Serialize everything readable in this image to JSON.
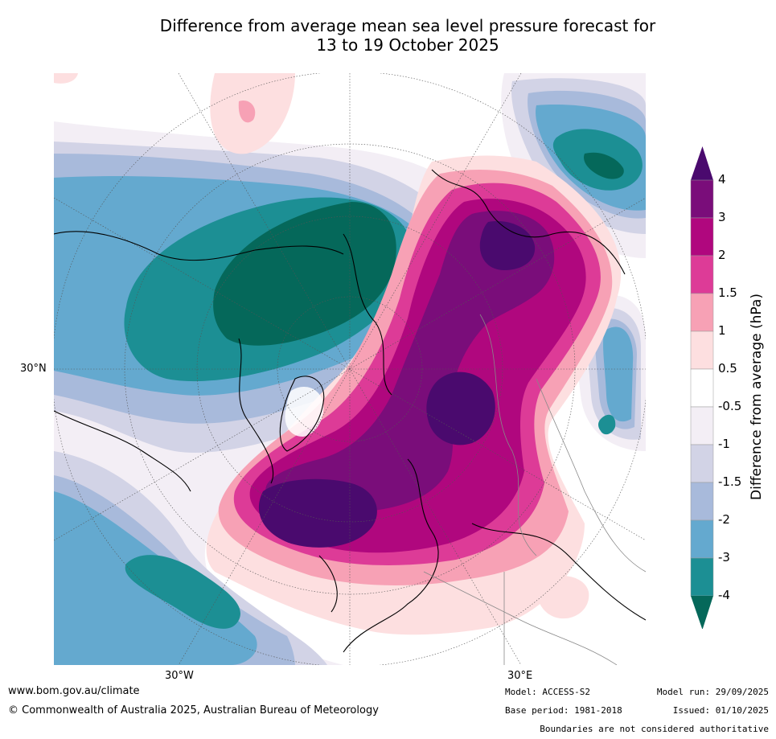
{
  "title": {
    "line1": "Difference from average mean sea level pressure forecast for",
    "line2": "13 to 19 October 2025"
  },
  "map_labels": {
    "lat_30n": "30°N",
    "lon_30w": "30°W",
    "lon_30e": "30°E"
  },
  "colorbar": {
    "label": "Difference from average (hPa)",
    "ticks": [
      "4",
      "3",
      "2",
      "1.5",
      "1",
      "0.5",
      "-0.5",
      "-1",
      "-1.5",
      "-2",
      "-3",
      "-4"
    ],
    "colors": {
      "pos_extend": "#4a0a6e",
      "p3_4": "#7a0d7a",
      "p2_3": "#b0077e",
      "p15_2": "#dd3b97",
      "p1_15": "#f7a1b5",
      "p05_1": "#fddfe0",
      "neutral": "#ffffff",
      "n05_1": "#f3eef5",
      "n1_15": "#d2d3e6",
      "n15_2": "#a8badb",
      "n2_3": "#64a9cf",
      "n3_4": "#1c8f94",
      "neg_extend": "#05685a"
    }
  },
  "footer": {
    "url": "www.bom.gov.au/climate",
    "copyright": "© Commonwealth of Australia 2025, Australian Bureau of Meteorology",
    "model": "Model: ACCESS-S2",
    "base_period": "Base period: 1981-2018",
    "model_run": "Model run: 29/09/2025",
    "issued": "Issued: 01/10/2025",
    "disclaimer": "Boundaries are not considered authoritative"
  }
}
